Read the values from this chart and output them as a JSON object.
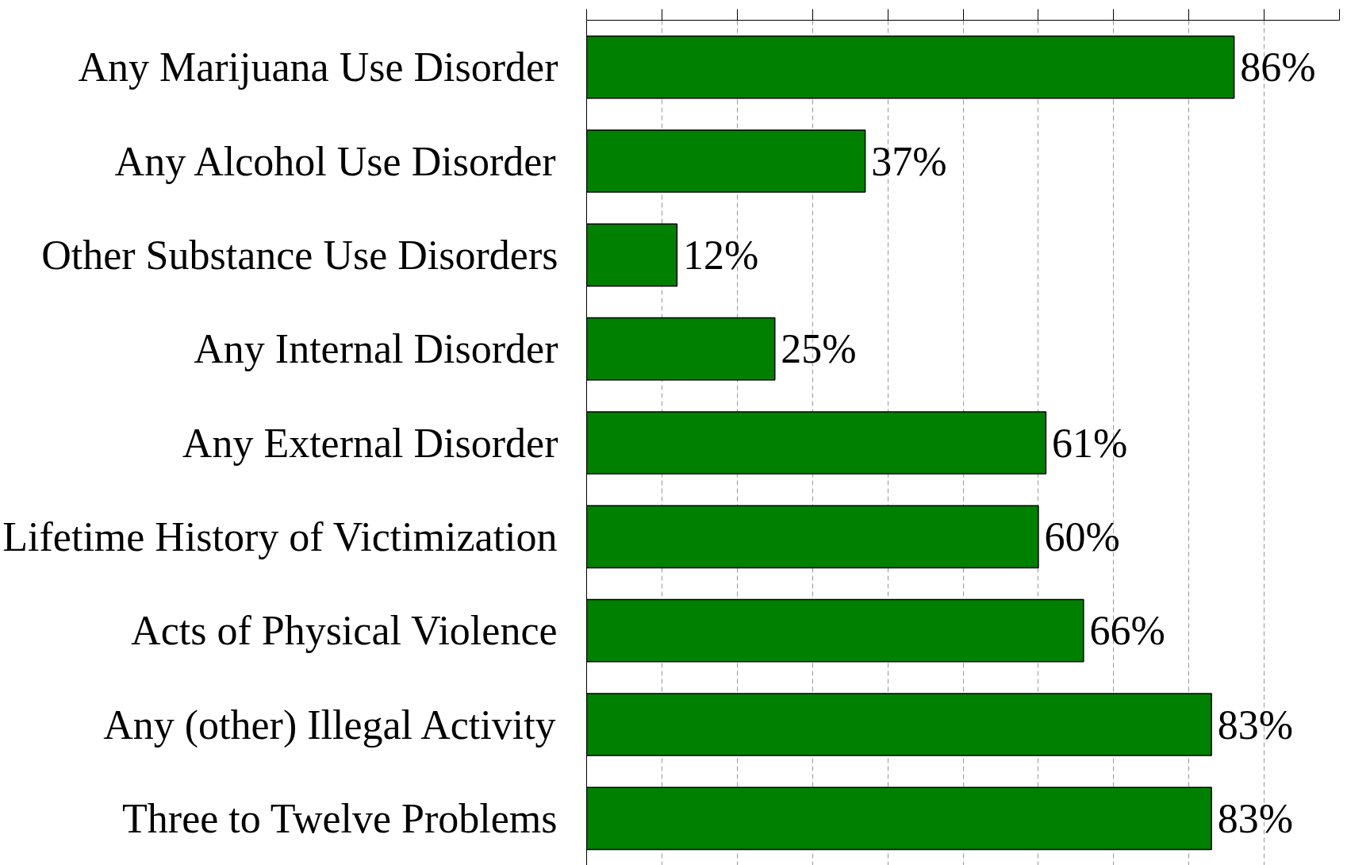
{
  "chart_data": {
    "type": "bar",
    "orientation": "horizontal",
    "categories": [
      "Any Marijuana Use Disorder",
      "Any Alcohol Use Disorder",
      "Other Substance Use Disorders",
      "Any Internal Disorder",
      "Any External Disorder",
      "Lifetime History of Victimization",
      "Acts of Physical Violence",
      "Any (other) Illegal Activity",
      "Three to Twelve Problems"
    ],
    "values": [
      86,
      37,
      12,
      25,
      61,
      60,
      66,
      83,
      83
    ],
    "value_labels": [
      "86%",
      "37%",
      "12%",
      "25%",
      "61%",
      "60%",
      "66%",
      "83%",
      "83%"
    ],
    "color": "#008000",
    "xlim": [
      0,
      100
    ],
    "xticks": [
      {
        "value": 0,
        "label": null
      },
      {
        "value": 10,
        "label": null
      },
      {
        "value": 20,
        "label": null
      },
      {
        "value": 30,
        "label": null
      },
      {
        "value": 40,
        "label": null
      },
      {
        "value": 50,
        "label": null
      },
      {
        "value": 60,
        "label": null
      },
      {
        "value": 70,
        "label": null
      },
      {
        "value": 80,
        "label": null
      },
      {
        "value": 90,
        "label": null
      },
      {
        "value": 100,
        "label": null
      }
    ],
    "tick_labels": "y",
    "grid": "x"
  }
}
